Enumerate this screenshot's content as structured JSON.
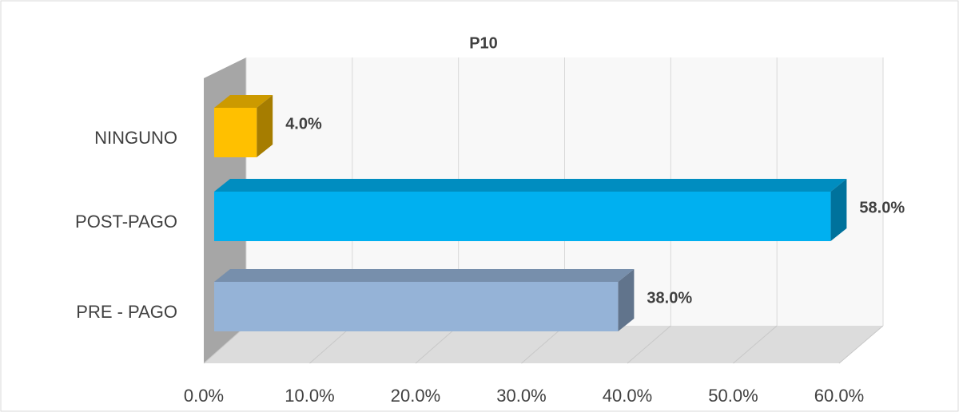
{
  "chart_data": {
    "type": "bar3d",
    "orientation": "horizontal",
    "title": "P10",
    "categories": [
      "NINGUNO",
      "POST-PAGO",
      "PRE - PAGO"
    ],
    "values": [
      4,
      58,
      38
    ],
    "value_labels": [
      "4.0%",
      "58.0%",
      "38.0%"
    ],
    "colors": [
      "#ffc000",
      "#00b0f0",
      "#95b3d7"
    ],
    "xlim": [
      0,
      60
    ],
    "xticks": [
      {
        "value": 0,
        "label": "0.0%"
      },
      {
        "value": 10,
        "label": "10.0%"
      },
      {
        "value": 20,
        "label": "20.0%"
      },
      {
        "value": 30,
        "label": "30.0%"
      },
      {
        "value": 40,
        "label": "40.0%"
      },
      {
        "value": 50,
        "label": "50.0%"
      },
      {
        "value": 60,
        "label": "60.0%"
      }
    ],
    "grid": true
  }
}
